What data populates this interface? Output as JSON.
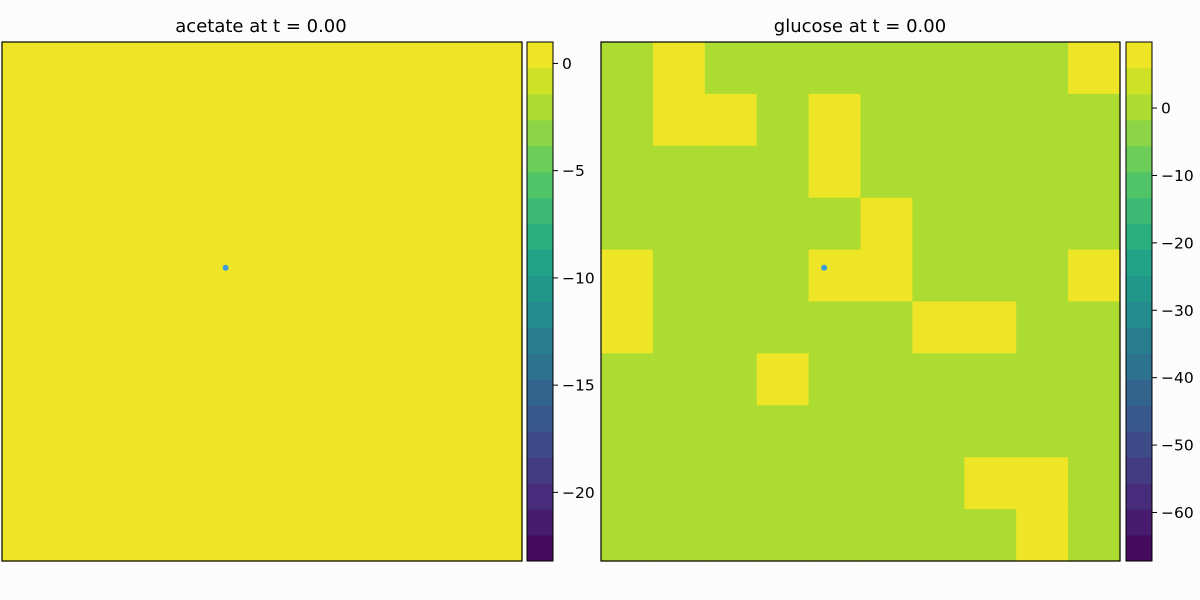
{
  "chart_data": [
    {
      "type": "heatmap",
      "title": "acetate at t = 0.00",
      "grid_size": [
        10,
        10
      ],
      "cell_values_note": "uniform field",
      "values": [
        [
          0,
          0,
          0,
          0,
          0,
          0,
          0,
          0,
          0,
          0
        ],
        [
          0,
          0,
          0,
          0,
          0,
          0,
          0,
          0,
          0,
          0
        ],
        [
          0,
          0,
          0,
          0,
          0,
          0,
          0,
          0,
          0,
          0
        ],
        [
          0,
          0,
          0,
          0,
          0,
          0,
          0,
          0,
          0,
          0
        ],
        [
          0,
          0,
          0,
          0,
          0,
          0,
          0,
          0,
          0,
          0
        ],
        [
          0,
          0,
          0,
          0,
          0,
          0,
          0,
          0,
          0,
          0
        ],
        [
          0,
          0,
          0,
          0,
          0,
          0,
          0,
          0,
          0,
          0
        ],
        [
          0,
          0,
          0,
          0,
          0,
          0,
          0,
          0,
          0,
          0
        ],
        [
          0,
          0,
          0,
          0,
          0,
          0,
          0,
          0,
          0,
          0
        ],
        [
          0,
          0,
          0,
          0,
          0,
          0,
          0,
          0,
          0,
          0
        ]
      ],
      "marker": {
        "x": 4.3,
        "y": 4.35,
        "color": "#3b9ed8"
      },
      "colorbar": {
        "range": [
          -23.2,
          1.0
        ],
        "ticks": [
          0,
          -5,
          -10,
          -15,
          -20
        ],
        "tick_labels": [
          "0",
          "−5",
          "−10",
          "−15",
          "−20"
        ],
        "levels": 20
      },
      "axes_ticks_visible": false,
      "grid": false
    },
    {
      "type": "heatmap",
      "title": "glucose at t = 0.00",
      "grid_size": [
        10,
        10
      ],
      "values": [
        [
          0.5,
          9.5,
          1.0,
          1.0,
          -1.0,
          1.0,
          1.0,
          1.0,
          1.0,
          9.5
        ],
        [
          -1.0,
          9.5,
          9.5,
          -1.0,
          9.5,
          1.0,
          1.0,
          1.0,
          -1.0,
          1.0
        ],
        [
          1.0,
          1.0,
          1.0,
          -1.0,
          9.5,
          1.0,
          1.0,
          1.0,
          -1.0,
          -1.0
        ],
        [
          1.0,
          -1.0,
          1.0,
          -1.0,
          1.0,
          9.5,
          -1.0,
          1.0,
          -1.0,
          1.0
        ],
        [
          9.5,
          -1.0,
          1.0,
          -1.0,
          9.5,
          9.5,
          1.0,
          1.0,
          1.0,
          9.5
        ],
        [
          9.5,
          1.0,
          -1.0,
          1.0,
          -1.0,
          1.0,
          9.5,
          9.5,
          1.0,
          1.0
        ],
        [
          -1.0,
          -1.0,
          1.0,
          9.5,
          1.0,
          -1.0,
          1.0,
          1.0,
          1.0,
          1.0
        ],
        [
          1.0,
          -1.0,
          1.0,
          -1.0,
          1.0,
          1.0,
          -1.0,
          1.0,
          1.0,
          -1.0
        ],
        [
          1.0,
          1.0,
          1.0,
          1.0,
          -1.0,
          1.0,
          -1.0,
          9.5,
          9.5,
          1.0
        ],
        [
          1.0,
          1.0,
          -1.0,
          1.0,
          1.0,
          1.0,
          1.0,
          1.0,
          9.5,
          1.0
        ]
      ],
      "marker": {
        "x": 4.3,
        "y": 4.35,
        "color": "#3b9ed8"
      },
      "colorbar": {
        "range": [
          -67.2,
          9.8
        ],
        "ticks": [
          0,
          -10,
          -20,
          -30,
          -40,
          -50,
          -60
        ],
        "tick_labels": [
          "0",
          "−10",
          "−20",
          "−30",
          "−40",
          "−50",
          "−60"
        ],
        "levels": 20
      },
      "axes_ticks_visible": false,
      "grid": false
    }
  ],
  "colors": {
    "background": "#fcfcfc",
    "frame": "#000000",
    "viridis": [
      "#440154",
      "#482475",
      "#414487",
      "#355f8d",
      "#2a788e",
      "#21918c",
      "#22a884",
      "#44bf70",
      "#7ad151",
      "#bddf26",
      "#fde725"
    ]
  }
}
